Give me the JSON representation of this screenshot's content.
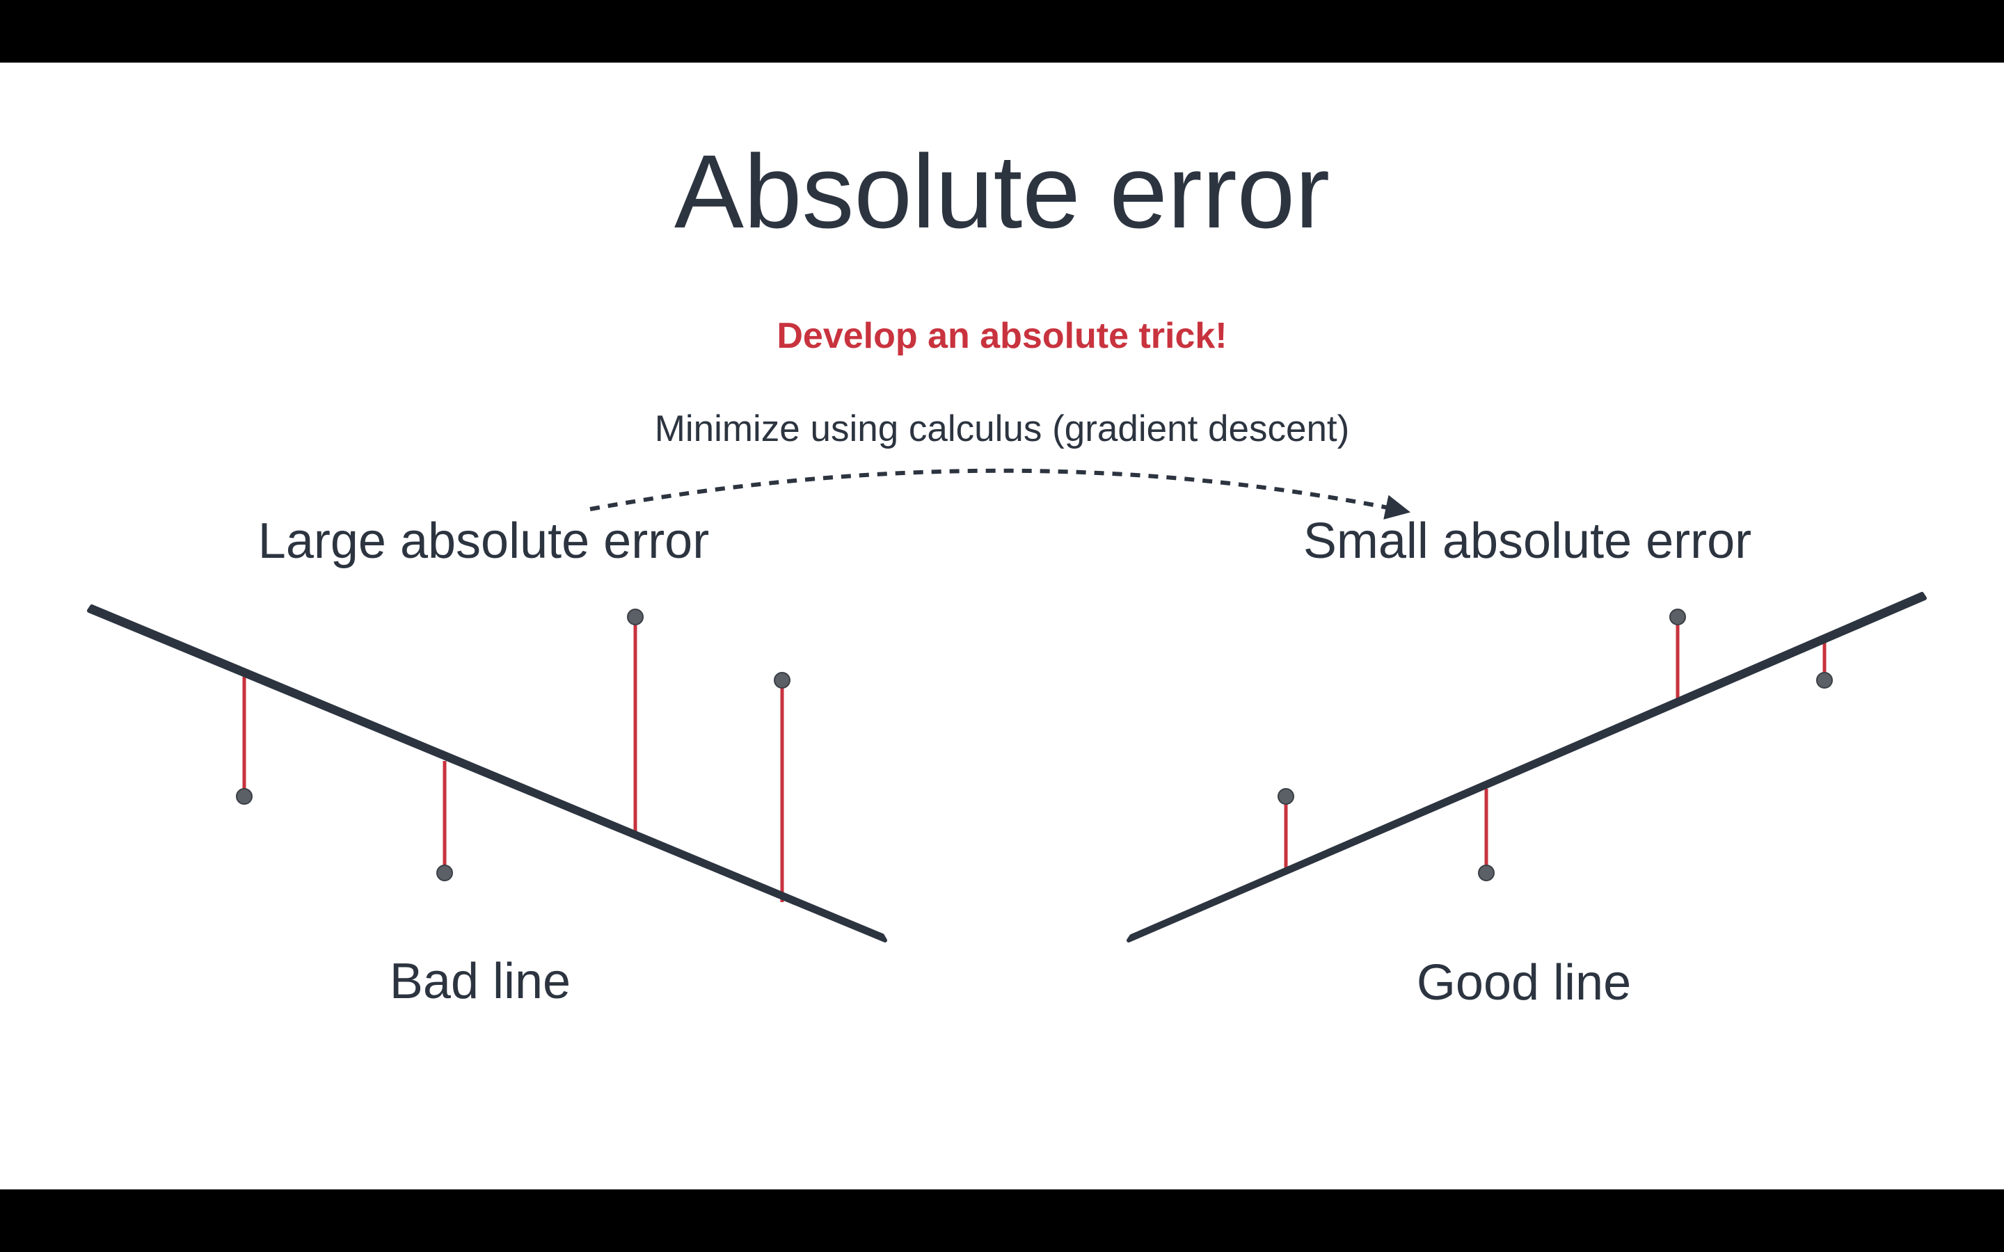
{
  "slide": {
    "title": "Absolute error",
    "subtitle": "Develop an absolute trick!",
    "arrow_caption": "Minimize using calculus (gradient descent)",
    "left_panel": {
      "top_label": "Large absolute error",
      "bottom_label": "Bad line"
    },
    "right_panel": {
      "top_label": "Small absolute error",
      "bottom_label": "Good line"
    }
  },
  "colors": {
    "text": "#2c3440",
    "accent": "#c8333e",
    "error_segment": "#c8333e",
    "point": "#5b6066",
    "line": "#2c3440",
    "background": "#ffffff"
  }
}
